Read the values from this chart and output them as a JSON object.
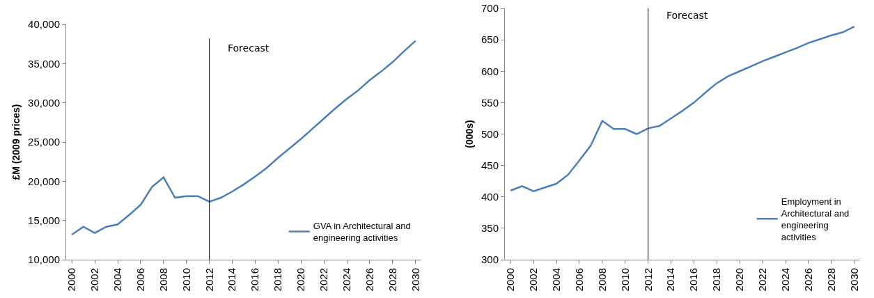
{
  "chart_data": [
    {
      "type": "line",
      "ylabel": "£M (2009 prices)",
      "x": [
        2000,
        2001,
        2002,
        2003,
        2004,
        2005,
        2006,
        2007,
        2008,
        2009,
        2010,
        2011,
        2012,
        2013,
        2014,
        2015,
        2016,
        2017,
        2018,
        2019,
        2020,
        2021,
        2022,
        2023,
        2024,
        2025,
        2026,
        2027,
        2028,
        2029,
        2030
      ],
      "series": [
        {
          "name": "GVA in Architectural and engineering activities",
          "color": "#4a7ebb",
          "values": [
            13200,
            14200,
            13400,
            14200,
            14500,
            15700,
            17000,
            19300,
            20500,
            17900,
            18100,
            18100,
            17400,
            17900,
            18700,
            19600,
            20600,
            21700,
            23000,
            24200,
            25400,
            26700,
            28000,
            29300,
            30500,
            31600,
            32900,
            34000,
            35200,
            36600,
            37900
          ]
        }
      ],
      "xlim": [
        1999.5,
        2030.5
      ],
      "xticks": [
        2000,
        2002,
        2004,
        2006,
        2008,
        2010,
        2012,
        2014,
        2016,
        2018,
        2020,
        2022,
        2024,
        2026,
        2028,
        2030
      ],
      "ylim": [
        10000,
        40000
      ],
      "yticks": [
        {
          "value": 10000,
          "label": "10,000"
        },
        {
          "value": 15000,
          "label": "15,000"
        },
        {
          "value": 20000,
          "label": "20,000"
        },
        {
          "value": 25000,
          "label": "25,000"
        },
        {
          "value": 30000,
          "label": "30,000"
        },
        {
          "value": 35000,
          "label": "35,000"
        },
        {
          "value": 40000,
          "label": "40,000"
        }
      ],
      "ref_lines": [
        {
          "axis": "x",
          "value": 2012,
          "label": "Forecast",
          "color": "#000000"
        }
      ],
      "grid": false,
      "legend": "bottom right",
      "marker": "none",
      "line_style": "solid"
    },
    {
      "type": "line",
      "ylabel": "(000s)",
      "x": [
        2000,
        2001,
        2002,
        2003,
        2004,
        2005,
        2006,
        2007,
        2008,
        2009,
        2010,
        2011,
        2012,
        2013,
        2014,
        2015,
        2016,
        2017,
        2018,
        2019,
        2020,
        2021,
        2022,
        2023,
        2024,
        2025,
        2026,
        2027,
        2028,
        2029,
        2030
      ],
      "series": [
        {
          "name": "Employment in Architectural and engineering activities",
          "color": "#4a7ebb",
          "values": [
            410,
            417,
            409,
            415,
            421,
            435,
            458,
            482,
            521,
            508,
            508,
            500,
            509,
            513,
            525,
            537,
            550,
            566,
            581,
            592,
            600,
            608,
            616,
            623,
            630,
            637,
            645,
            651,
            657,
            662,
            671
          ]
        }
      ],
      "xlim": [
        1999.5,
        2030.5
      ],
      "xticks": [
        2000,
        2002,
        2004,
        2006,
        2008,
        2010,
        2012,
        2014,
        2016,
        2018,
        2020,
        2022,
        2024,
        2026,
        2028,
        2030
      ],
      "ylim": [
        300,
        700
      ],
      "yticks": [
        300,
        350,
        400,
        450,
        500,
        550,
        600,
        650,
        700
      ],
      "ref_lines": [
        {
          "axis": "x",
          "value": 2012,
          "label": "Forecast",
          "color": "#000000"
        }
      ],
      "grid": false,
      "legend": "bottom right",
      "marker": "none",
      "line_style": "solid"
    }
  ]
}
